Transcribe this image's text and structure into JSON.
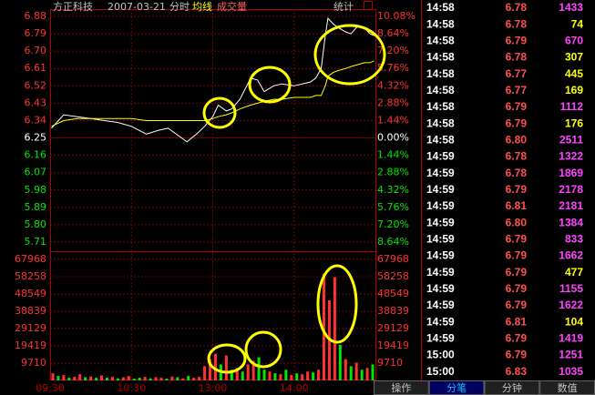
{
  "chart_data": [
    {
      "type": "line",
      "title": "方正科技",
      "subtitle": "2007-03-21",
      "x": [
        1,
        10,
        20,
        30,
        40,
        50,
        60,
        71,
        80,
        87,
        95,
        101,
        108,
        114,
        120,
        124,
        130,
        134,
        140,
        148,
        153,
        158,
        165,
        171,
        180,
        192,
        196,
        200,
        203,
        205,
        209,
        213,
        218,
        222,
        227,
        232,
        236,
        239
      ],
      "series": [
        {
          "name": "分时",
          "color": "#ffffff",
          "values": [
            6.3,
            6.37,
            6.36,
            6.35,
            6.34,
            6.33,
            6.31,
            6.27,
            6.29,
            6.3,
            6.26,
            6.23,
            6.27,
            6.31,
            6.36,
            6.42,
            6.39,
            6.4,
            6.45,
            6.56,
            6.55,
            6.49,
            6.52,
            6.53,
            6.52,
            6.54,
            6.56,
            6.61,
            6.78,
            6.87,
            6.84,
            6.82,
            6.8,
            6.79,
            6.83,
            6.82,
            6.79,
            6.78
          ]
        },
        {
          "name": "均线",
          "color": "#ffff00",
          "values": [
            6.31,
            6.34,
            6.35,
            6.35,
            6.35,
            6.35,
            6.35,
            6.34,
            6.34,
            6.34,
            6.34,
            6.34,
            6.34,
            6.34,
            6.35,
            6.36,
            6.37,
            6.38,
            6.4,
            6.42,
            6.43,
            6.44,
            6.45,
            6.45,
            6.46,
            6.46,
            6.47,
            6.47,
            6.52,
            6.57,
            6.59,
            6.6,
            6.61,
            6.62,
            6.63,
            6.64,
            6.64,
            6.65
          ]
        }
      ],
      "xlim": [
        0,
        240
      ],
      "ylim": [
        5.71,
        6.88
      ],
      "yticks": [
        6.88,
        6.79,
        {
          "value": 6.7,
          "label": "6.70"
        },
        6.61,
        6.52,
        6.43,
        6.34,
        6.25,
        6.16,
        6.07,
        5.98,
        5.89,
        {
          "value": 5.8,
          "label": "5.80"
        },
        5.71
      ],
      "y2lim": [
        -8.64,
        10.08
      ],
      "y2ticks": [
        {
          "value": 10.08,
          "label": "10.08%"
        },
        {
          "value": 8.64,
          "label": "8.64%"
        },
        {
          "value": 7.2,
          "label": "7.20%"
        },
        {
          "value": 5.76,
          "label": "5.76%"
        },
        {
          "value": 4.32,
          "label": "4.32%"
        },
        {
          "value": 2.88,
          "label": "2.88%"
        },
        {
          "value": 1.44,
          "label": "1.44%"
        },
        {
          "value": 0,
          "label": "0.00%"
        },
        {
          "value": -1.44,
          "label": "1.44%"
        },
        {
          "value": -2.88,
          "label": "2.88%"
        },
        {
          "value": -4.32,
          "label": "4.32%"
        },
        {
          "value": -5.76,
          "label": "5.76%"
        },
        {
          "value": -7.2,
          "label": "7.20%"
        },
        {
          "value": -8.64,
          "label": "8.64%"
        }
      ],
      "up_color": "#ff3232",
      "down_color": "#00e600",
      "flat_color": "#ffffff",
      "grid": true
    },
    {
      "type": "bar",
      "series": [
        {
          "name": "成交量",
          "values": [
            4000,
            2500,
            3000,
            1500,
            2000,
            3500,
            1800,
            2200,
            1500,
            2800,
            1500,
            2000,
            1200,
            1800,
            2500,
            1000,
            1500,
            2000,
            1200,
            1800,
            1500,
            1000,
            2200,
            1800,
            1200,
            2500,
            1500,
            2000,
            8000,
            12000,
            15000,
            9000,
            14000,
            6000,
            7000,
            5000,
            9000,
            11000,
            13000,
            6000,
            5000,
            4000,
            3500,
            6000,
            3000,
            4000,
            3500,
            5000,
            4500,
            6000,
            60000,
            45000,
            58000,
            20000,
            12000,
            8000,
            10000,
            6000,
            7000,
            9000
          ],
          "colors": [
            "#ff3232",
            "#00e600",
            "#ff3232",
            "#00e600",
            "#ff3232",
            "#ff3232",
            "#00e600",
            "#ff3232",
            "#00e600",
            "#ff3232",
            "#00e600",
            "#ff3232",
            "#00e600",
            "#ff3232",
            "#ff3232",
            "#00e600",
            "#00e600",
            "#ff3232",
            "#00e600",
            "#ff3232",
            "#ff3232",
            "#00e600",
            "#ff3232",
            "#00e600",
            "#ff3232",
            "#00e600",
            "#ff3232",
            "#ff3232",
            "#ff3232",
            "#ff3232",
            "#ff3232",
            "#00e600",
            "#ff3232",
            "#00e600",
            "#ff3232",
            "#00e600",
            "#ff3232",
            "#ff3232",
            "#00e600",
            "#00e600",
            "#ff3232",
            "#00e600",
            "#ff3232",
            "#00e600",
            "#ff3232",
            "#00e600",
            "#ff3232",
            "#ff3232",
            "#00e600",
            "#ff3232",
            "#ff3232",
            "#ff3232",
            "#ff3232",
            "#00e600",
            "#ff3232",
            "#00e600",
            "#ff3232",
            "#00e600",
            "#ff3232",
            "#00e600"
          ]
        }
      ],
      "x": [
        2,
        6,
        10,
        14,
        18,
        22,
        26,
        30,
        34,
        38,
        42,
        46,
        50,
        54,
        58,
        62,
        66,
        70,
        74,
        78,
        82,
        86,
        90,
        94,
        98,
        102,
        106,
        110,
        114,
        118,
        122,
        126,
        130,
        134,
        138,
        142,
        146,
        150,
        154,
        158,
        162,
        166,
        170,
        174,
        178,
        182,
        186,
        190,
        194,
        198,
        202,
        206,
        210,
        214,
        218,
        222,
        226,
        230,
        234,
        238
      ],
      "xlim": [
        0,
        240
      ],
      "xticks": [
        {
          "value": 0,
          "label": "09:30"
        },
        {
          "value": 60,
          "label": "10:30"
        },
        {
          "value": 120,
          "label": "13:00"
        },
        {
          "value": 180,
          "label": "14:00"
        }
      ],
      "ylim": [
        0,
        67968
      ],
      "yticks": [
        67968,
        58258,
        48549,
        38839,
        29129,
        19419,
        9710
      ]
    }
  ],
  "header": {
    "stats": "统计"
  },
  "trades": {
    "rows": [
      {
        "time": "14:58",
        "price": "6.78",
        "volume": 1433,
        "volume_color": "#ff44ff"
      },
      {
        "time": "14:58",
        "price": "6.78",
        "volume": 74,
        "volume_color": "#ffff00"
      },
      {
        "time": "14:58",
        "price": "6.79",
        "volume": 670,
        "volume_color": "#ff44ff"
      },
      {
        "time": "14:58",
        "price": "6.78",
        "volume": 307,
        "volume_color": "#ffff00"
      },
      {
        "time": "14:58",
        "price": "6.77",
        "volume": 445,
        "volume_color": "#ffff00"
      },
      {
        "time": "14:58",
        "price": "6.77",
        "volume": 169,
        "volume_color": "#ffff00"
      },
      {
        "time": "14:58",
        "price": "6.79",
        "volume": 1112,
        "volume_color": "#ff44ff"
      },
      {
        "time": "14:58",
        "price": "6.79",
        "volume": 176,
        "volume_color": "#ffff00"
      },
      {
        "time": "14:58",
        "price": "6.80",
        "volume": 2511,
        "volume_color": "#ff44ff"
      },
      {
        "time": "14:59",
        "price": "6.78",
        "volume": 1322,
        "volume_color": "#ff44ff"
      },
      {
        "time": "14:59",
        "price": "6.78",
        "volume": 1869,
        "volume_color": "#ff44ff"
      },
      {
        "time": "14:59",
        "price": "6.79",
        "volume": 2178,
        "volume_color": "#ff44ff"
      },
      {
        "time": "14:59",
        "price": "6.81",
        "volume": 2181,
        "volume_color": "#ff44ff"
      },
      {
        "time": "14:59",
        "price": "6.80",
        "volume": 1384,
        "volume_color": "#ff44ff"
      },
      {
        "time": "14:59",
        "price": "6.79",
        "volume": 833,
        "volume_color": "#ff44ff"
      },
      {
        "time": "14:59",
        "price": "6.79",
        "volume": 1662,
        "volume_color": "#ff44ff"
      },
      {
        "time": "14:59",
        "price": "6.79",
        "volume": 477,
        "volume_color": "#ffff00"
      },
      {
        "time": "14:59",
        "price": "6.79",
        "volume": 1155,
        "volume_color": "#ff44ff"
      },
      {
        "time": "14:59",
        "price": "6.79",
        "volume": 1622,
        "volume_color": "#ff44ff"
      },
      {
        "time": "14:59",
        "price": "6.81",
        "volume": 104,
        "volume_color": "#ffff00"
      },
      {
        "time": "14:59",
        "price": "6.79",
        "volume": 1419,
        "volume_color": "#ff44ff"
      },
      {
        "time": "15:00",
        "price": "6.79",
        "volume": 1251,
        "volume_color": "#ff44ff"
      },
      {
        "time": "15:00",
        "price": "6.83",
        "volume": 1035,
        "volume_color": "#ff44ff"
      }
    ]
  },
  "tabs": [
    "操作",
    "分笔",
    "分钟",
    "数值"
  ]
}
